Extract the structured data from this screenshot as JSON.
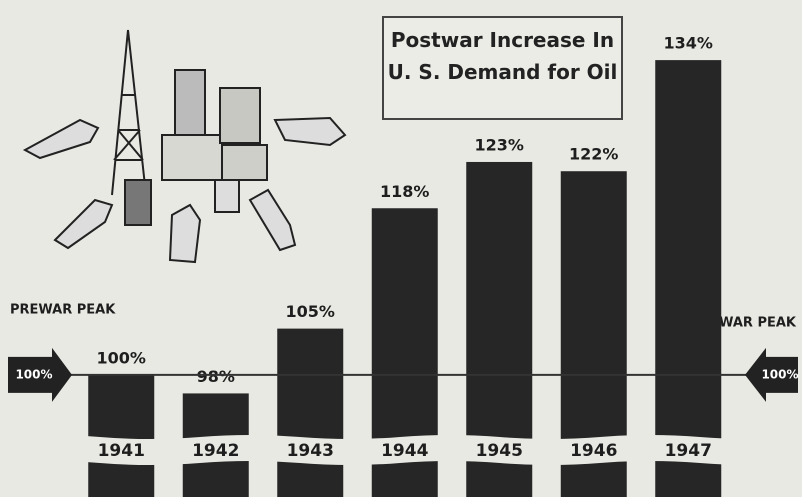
{
  "chart_data": {
    "type": "bar",
    "title": "Postwar Increase In U. S. Demand for Oil",
    "categories": [
      "1941",
      "1942",
      "1943",
      "1944",
      "1945",
      "1946",
      "1947"
    ],
    "values": [
      100,
      98,
      105,
      118,
      123,
      122,
      134
    ],
    "value_labels": [
      "100%",
      "98%",
      "105%",
      "118%",
      "123%",
      "122%",
      "134%"
    ],
    "color": "#262626",
    "ylim": [
      88,
      136
    ],
    "reference_line": {
      "value": 100,
      "label": "PREWAR PEAK",
      "arrow_label": "100%"
    }
  }
}
